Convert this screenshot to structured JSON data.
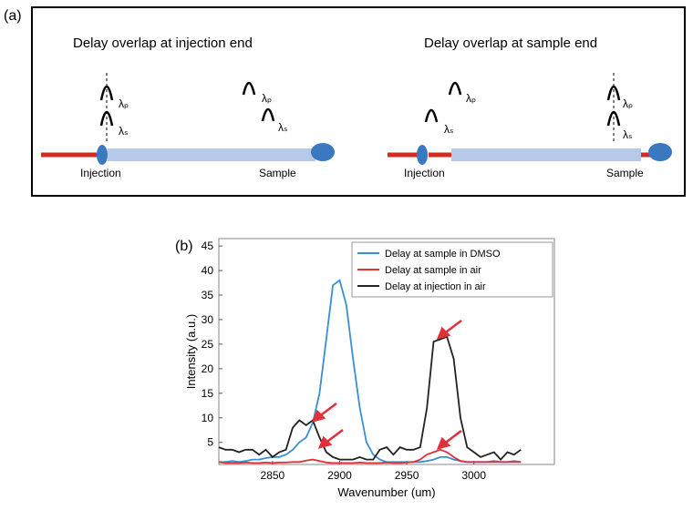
{
  "panel_a": {
    "label": "(a)",
    "left": {
      "title": "Delay overlap at injection end",
      "labels": [
        "λₚ",
        "λₛ",
        "λₚ",
        "λₛ"
      ],
      "start": "Injection",
      "end": "Sample"
    },
    "right": {
      "title": "Delay overlap at sample end",
      "labels": [
        "λₛ",
        "λₚ",
        "λₚ",
        "λₛ"
      ],
      "start": "Injection",
      "end": "Sample"
    }
  },
  "chart_data": {
    "type": "line",
    "panel_label": "(b)",
    "x_label": "Wavenumber (um)",
    "y_label": "Intensity (a.u.)",
    "x": [
      2810,
      2815,
      2820,
      2825,
      2830,
      2835,
      2840,
      2845,
      2850,
      2855,
      2860,
      2865,
      2870,
      2875,
      2880,
      2885,
      2890,
      2895,
      2900,
      2905,
      2910,
      2915,
      2920,
      2925,
      2930,
      2935,
      2940,
      2945,
      2950,
      2955,
      2960,
      2965,
      2970,
      2975,
      2980,
      2985,
      2990,
      2995,
      3000,
      3005,
      3010,
      3015,
      3020,
      3025,
      3030,
      3035
    ],
    "series": [
      {
        "name": "Delay at sample in DMSO",
        "color": "#3a8fd0",
        "values": [
          1,
          1,
          1.2,
          1,
          1.2,
          1.5,
          1.5,
          1.8,
          2,
          2,
          2.5,
          3.5,
          5,
          6,
          9,
          15,
          26,
          37,
          38,
          33,
          22,
          12,
          5,
          2.5,
          1.5,
          1,
          1,
          1,
          1,
          1,
          1,
          1.2,
          1.5,
          2,
          2,
          1.5,
          1.2,
          1,
          1,
          1,
          1,
          1.2,
          1,
          1,
          1.2,
          1
        ]
      },
      {
        "name": "Delay at sample in air",
        "color": "#e0303a",
        "values": [
          1,
          0.8,
          0.8,
          0.8,
          0.9,
          0.8,
          0.8,
          0.9,
          0.8,
          0.9,
          0.9,
          1,
          1,
          1.3,
          1.5,
          1.2,
          0.9,
          0.8,
          0.8,
          0.8,
          0.8,
          0.9,
          0.8,
          0.8,
          0.8,
          0.9,
          0.8,
          0.8,
          0.9,
          1,
          1.5,
          2.5,
          3,
          3.5,
          3,
          2,
          1.2,
          1,
          1,
          1,
          1,
          1,
          1,
          1,
          1,
          1
        ]
      },
      {
        "name": "Delay at injection in air",
        "color": "#222222",
        "values": [
          4,
          3.5,
          3.5,
          3,
          3.5,
          3.5,
          2.5,
          3.5,
          2,
          3,
          3.5,
          8,
          9.5,
          8.5,
          9.5,
          6,
          3,
          2,
          1.5,
          1.5,
          1.5,
          2,
          1.5,
          1.5,
          3.5,
          4,
          2.5,
          4,
          3.5,
          3.5,
          4,
          12,
          25.5,
          26,
          26.5,
          22,
          10,
          4,
          3,
          2,
          2.5,
          3,
          1.5,
          3,
          2.5,
          3.5
        ]
      }
    ],
    "xlim": [
      2810,
      3060
    ],
    "ylim": [
      0.5,
      46.5
    ],
    "xticks": [
      2850,
      2900,
      2950,
      3000
    ],
    "yticks": [
      5,
      10,
      15,
      20,
      25,
      30,
      35,
      40,
      45
    ],
    "legend": "upper right"
  }
}
